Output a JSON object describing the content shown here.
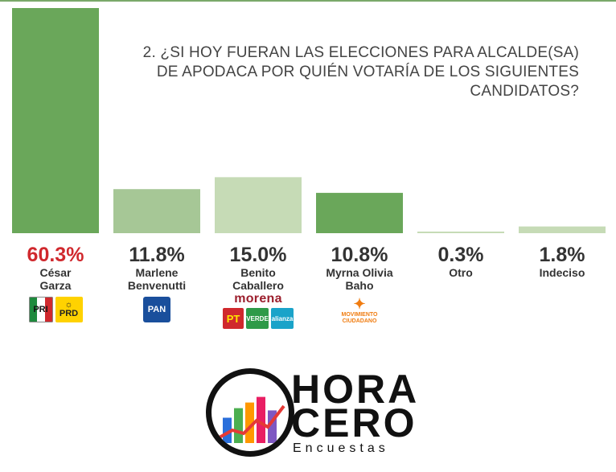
{
  "title": "2. ¿SI HOY FUERAN LAS ELECCIONES PARA ALCALDE(SA) DE APODACA POR QUIÉN VOTARÍA DE LOS SIGUIENTES CANDIDATOS?",
  "chart_data": {
    "type": "bar",
    "title": "2. ¿SI HOY FUERAN LAS ELECCIONES PARA ALCALDE(SA) DE APODACA POR QUIÉN VOTARÍA DE LOS SIGUIENTES CANDIDATOS?",
    "categories": [
      "César Garza",
      "Marlene Benvenutti",
      "Benito Caballero",
      "Myrna Olivia Baho",
      "Otro",
      "Indeciso"
    ],
    "values": [
      60.3,
      11.8,
      15.0,
      10.8,
      0.3,
      1.8
    ],
    "value_labels": [
      "60.3%",
      "11.8%",
      "15.0%",
      "10.8%",
      "0.3%",
      "1.8%"
    ],
    "ylim": [
      0,
      60.3
    ],
    "bar_colors": [
      "#6aa75a",
      "#a6c796",
      "#c6dbb6",
      "#6aa75a",
      "#c6dbb6",
      "#c6dbb6"
    ],
    "label_colors": [
      "#d0282d",
      "#333333",
      "#333333",
      "#333333",
      "#333333",
      "#333333"
    ],
    "grid": false
  },
  "candidates": [
    {
      "pct": "60.3%",
      "name_line1": "César",
      "name_line2": "Garza",
      "parties": [
        "PRI",
        "PRD"
      ]
    },
    {
      "pct": "11.8%",
      "name_line1": "Marlene",
      "name_line2": "Benvenutti",
      "parties": [
        "PAN"
      ]
    },
    {
      "pct": "15.0%",
      "name_line1": "Benito",
      "name_line2": "Caballero",
      "parties": [
        "morena",
        "PT",
        "VERDE",
        "alianza"
      ]
    },
    {
      "pct": "10.8%",
      "name_line1": "Myrna Olivia",
      "name_line2": "Baho",
      "parties": [
        "MOVIMIENTO CIUDADANO"
      ]
    },
    {
      "pct": "0.3%",
      "name_line1": "Otro",
      "name_line2": ""
    },
    {
      "pct": "1.8%",
      "name_line1": "Indeciso",
      "name_line2": ""
    }
  ],
  "brand": {
    "line1": "HORA",
    "line2": "CERO",
    "sub": "Encuestas",
    "bar_colors": [
      "#2a6fdb",
      "#4caf50",
      "#ff9800",
      "#e91e63",
      "#7e57c2"
    ],
    "trend_color": "#e53935"
  },
  "colors": {
    "accent": "#7aa86a",
    "lead": "#d0282d",
    "text": "#333333"
  }
}
